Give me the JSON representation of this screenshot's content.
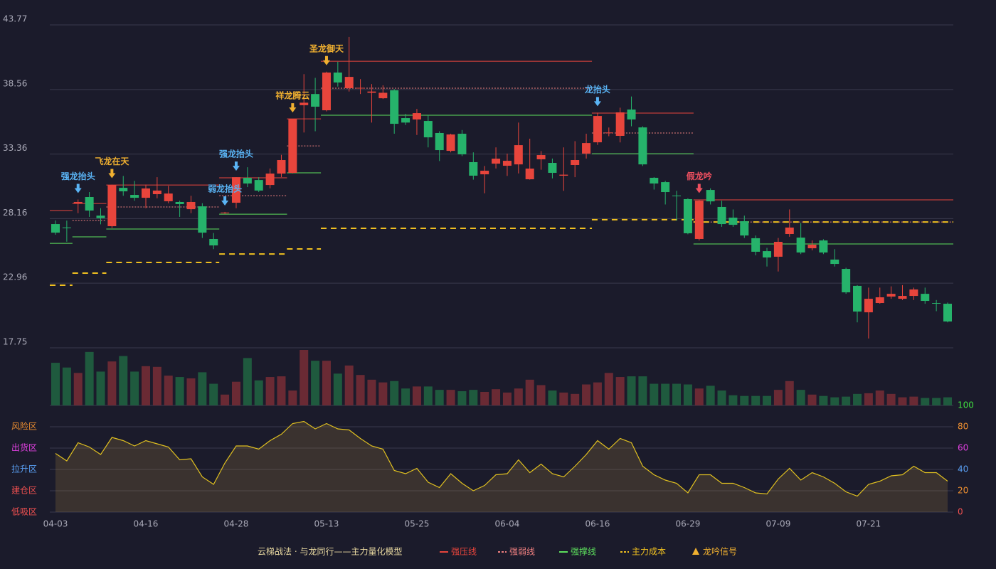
{
  "chart_data": {
    "type": "candlestick",
    "categories": [
      "04-03",
      null,
      null,
      null,
      null,
      null,
      null,
      null,
      "04-16",
      null,
      null,
      null,
      null,
      null,
      null,
      null,
      "04-28",
      null,
      null,
      null,
      null,
      null,
      null,
      null,
      "05-13",
      null,
      null,
      null,
      null,
      null,
      null,
      null,
      "05-25",
      null,
      null,
      null,
      null,
      null,
      null,
      null,
      "06-04",
      null,
      null,
      null,
      null,
      null,
      null,
      null,
      "06-16",
      null,
      null,
      null,
      null,
      null,
      null,
      null,
      "06-29",
      null,
      null,
      null,
      null,
      null,
      null,
      null,
      "07-09",
      null,
      null,
      null,
      null,
      null,
      null,
      null,
      "07-21",
      null,
      null,
      null,
      null,
      null,
      null,
      null
    ],
    "open": [
      27.72,
      27.45,
      29.4,
      29.9,
      28.4,
      27.55,
      30.64,
      30.07,
      29.84,
      30.13,
      29.56,
      29.5,
      28.92,
      29.15,
      26.52,
      28.6,
      29.44,
      31.45,
      31.27,
      30.87,
      31.79,
      31.85,
      37.3,
      38.2,
      36.89,
      39.93,
      38.67,
      38.65,
      38.3,
      37.86,
      38.5,
      36.26,
      36.15,
      36.03,
      35.06,
      33.62,
      35.0,
      32.71,
      31.73,
      32.59,
      32.42,
      32.53,
      31.33,
      32.94,
      32.65,
      31.62,
      32.48,
      33.4,
      34.31,
      35.05,
      34.83,
      36.95,
      35.51,
      31.45,
      31.1,
      30.02,
      29.73,
      26.52,
      30.47,
      29.1,
      28.24,
      27.95,
      26.58,
      25.54,
      25.09,
      26.92,
      26.63,
      25.77,
      26.4,
      24.86,
      24.11,
      22.74,
      20.61,
      21.36,
      21.88,
      21.7,
      21.93,
      22.1,
      21.36,
      21.3
    ],
    "high": [
      28.01,
      28.0,
      29.7,
      30.3,
      29.0,
      30.9,
      31.6,
      31.2,
      30.9,
      31.5,
      30.8,
      29.6,
      30.0,
      29.4,
      27.0,
      28.7,
      31.5,
      32.3,
      31.5,
      32.2,
      33.3,
      36.2,
      39.8,
      39.5,
      40.0,
      40.8,
      42.8,
      39.4,
      39.0,
      38.9,
      38.6,
      36.6,
      37.0,
      36.5,
      35.2,
      35.0,
      35.3,
      33.5,
      32.4,
      33.9,
      33.4,
      35.9,
      34.6,
      33.6,
      33.0,
      33.9,
      34.4,
      35.0,
      36.7,
      35.5,
      37.1,
      38.0,
      35.6,
      31.5,
      31.2,
      30.4,
      29.8,
      29.7,
      30.6,
      29.6,
      28.9,
      28.4,
      26.8,
      25.8,
      26.6,
      28.9,
      27.8,
      26.4,
      26.5,
      25.7,
      24.2,
      22.8,
      22.6,
      22.6,
      22.7,
      22.8,
      22.6,
      22.6,
      21.6,
      21.4
    ],
    "low": [
      26.86,
      26.3,
      28.6,
      28.3,
      27.7,
      27.4,
      30.0,
      29.6,
      29.0,
      29.8,
      29.4,
      28.3,
      28.6,
      26.6,
      25.7,
      28.55,
      29.0,
      30.7,
      30.3,
      30.6,
      31.5,
      31.8,
      35.1,
      35.2,
      36.8,
      38.8,
      38.4,
      38.2,
      35.9,
      37.8,
      35.0,
      35.7,
      34.9,
      33.9,
      32.8,
      33.5,
      33.2,
      31.3,
      30.2,
      32.2,
      31.6,
      31.8,
      31.3,
      32.1,
      31.4,
      30.4,
      31.5,
      33.0,
      34.1,
      34.8,
      34.3,
      35.6,
      32.4,
      30.5,
      29.3,
      28.0,
      26.9,
      26.4,
      29.3,
      27.5,
      27.5,
      26.6,
      25.2,
      24.3,
      23.9,
      26.7,
      25.3,
      25.6,
      25.3,
      24.3,
      22.1,
      19.8,
      18.5,
      21.3,
      21.7,
      21.6,
      21.6,
      21.3,
      20.7,
      19.8
    ],
    "close": [
      27.03,
      27.4,
      29.5,
      28.81,
      28.2,
      30.87,
      30.36,
      29.84,
      30.59,
      30.42,
      30.18,
      29.33,
      29.5,
      27.03,
      26.0,
      28.65,
      31.5,
      30.99,
      30.42,
      31.79,
      32.88,
      36.2,
      37.5,
      37.18,
      39.93,
      39.13,
      39.58,
      38.7,
      38.4,
      38.3,
      35.8,
      35.9,
      36.66,
      34.71,
      33.68,
      34.94,
      33.34,
      31.62,
      32.02,
      32.99,
      32.82,
      34.08,
      32.19,
      33.28,
      31.85,
      31.7,
      32.88,
      34.25,
      36.43,
      35.1,
      36.72,
      36.15,
      32.53,
      30.99,
      30.3,
      29.98,
      26.98,
      29.61,
      29.55,
      27.72,
      27.66,
      26.8,
      25.49,
      25.03,
      26.29,
      27.44,
      25.43,
      26.06,
      25.43,
      24.51,
      22.22,
      20.67,
      21.7,
      21.82,
      22.1,
      21.93,
      22.45,
      21.53,
      21.35,
      19.87
    ],
    "volume": [
      63,
      56,
      48,
      79,
      50,
      65,
      73,
      50,
      58,
      57,
      44,
      42,
      40,
      49,
      32,
      16,
      35,
      70,
      37,
      42,
      43,
      22,
      82,
      66,
      66,
      47,
      59,
      45,
      38,
      34,
      36,
      25,
      28,
      28,
      23,
      23,
      21,
      23,
      20,
      24,
      19,
      25,
      38,
      30,
      22,
      19,
      17,
      31,
      34,
      48,
      42,
      43,
      43,
      32,
      32,
      32,
      31,
      25,
      29,
      22,
      15,
      14,
      14,
      14,
      23,
      36,
      23,
      16,
      14,
      12,
      13,
      17,
      18,
      22,
      17,
      12,
      13,
      11,
      11,
      12
    ],
    "up_color": "#e8453c",
    "down_color": "#26b36b",
    "ylim": [
      17.75,
      43.77
    ],
    "yticks": [
      17.75,
      22.96,
      28.16,
      33.36,
      38.56,
      43.77
    ],
    "grid": true,
    "signals": [
      {
        "index": 2,
        "label": "强龙抬头",
        "color": "#5ab4f5"
      },
      {
        "index": 5,
        "label": "飞龙在天",
        "color": "#f0b030"
      },
      {
        "index": 15,
        "label": "弱龙抬头",
        "color": "#5ab4f5"
      },
      {
        "index": 16,
        "label": "强龙抬头",
        "color": "#5ab4f5"
      },
      {
        "index": 21,
        "label": "祥龙腾云",
        "color": "#f0b030"
      },
      {
        "index": 24,
        "label": "圣龙御天",
        "color": "#f0b030"
      },
      {
        "index": 48,
        "label": "龙抬头",
        "color": "#5ab4f5"
      },
      {
        "index": 57,
        "label": "假龙吟",
        "color": "#f05060"
      }
    ],
    "levels": [
      {
        "from": 0,
        "to": 1,
        "resistance": 28.81,
        "mid": null,
        "support": 26.17,
        "cost": 22.79
      },
      {
        "from": 2,
        "to": 4,
        "resistance": 29.38,
        "mid": 28.01,
        "support": 26.69,
        "cost": 23.77
      },
      {
        "from": 5,
        "to": 14,
        "resistance": 30.87,
        "mid": 29.1,
        "support": 27.32,
        "cost": 24.63
      },
      {
        "from": 15,
        "to": 20,
        "resistance": 31.45,
        "mid": 30.01,
        "support": 28.52,
        "cost": 25.31
      },
      {
        "from": 21,
        "to": 23,
        "resistance": 36.2,
        "mid": 34.02,
        "support": 31.85,
        "cost": 25.72
      },
      {
        "from": 24,
        "to": 47,
        "resistance": 40.84,
        "mid": 38.67,
        "support": 36.49,
        "cost": 27.38
      },
      {
        "from": 48,
        "to": 56,
        "resistance": 36.66,
        "mid": 35.06,
        "support": 33.39,
        "cost": 28.07
      },
      {
        "from": 57,
        "to": 79,
        "resistance": 29.67,
        "mid": 27.89,
        "support": 26.12,
        "cost": 27.89
      }
    ],
    "level_colors": {
      "resistance": "#e8453c",
      "mid": "#f08080",
      "support": "#5de05d",
      "cost": "#f0c020"
    },
    "indicator": {
      "values": [
        55,
        48,
        65,
        61,
        54,
        70,
        67,
        62,
        67,
        64,
        61,
        49,
        50,
        33,
        26,
        46,
        62,
        62,
        59,
        67,
        73,
        83,
        85,
        78,
        83,
        78,
        77,
        69,
        62,
        59,
        39,
        36,
        41,
        28,
        23,
        36,
        27,
        20,
        25,
        35,
        36,
        49,
        37,
        45,
        36,
        33,
        43,
        54,
        67,
        59,
        69,
        65,
        43,
        35,
        30,
        27,
        18,
        35,
        35,
        27,
        27,
        23,
        18,
        17,
        31,
        41,
        30,
        37,
        33,
        27,
        19,
        15,
        26,
        29,
        34,
        35,
        43,
        37,
        37,
        29
      ],
      "color": "#e0c020",
      "ylim": [
        0,
        100
      ],
      "yticks": [
        0,
        20,
        40,
        60,
        80,
        100
      ],
      "ytick_colors": [
        "#f05050",
        "#f09030",
        "#5aa0f5",
        "#e040e0",
        "#f09030",
        "#40e040"
      ],
      "zone_ticks": [
        {
          "value": 80,
          "label": "风险区"
        },
        {
          "value": 60,
          "label": "出货区"
        },
        {
          "value": 40,
          "label": "拉升区"
        },
        {
          "value": 20,
          "label": "建仓区"
        },
        {
          "value": 0,
          "label": "低吸区"
        }
      ],
      "zone_colors": [
        "#f09030",
        "#e040e0",
        "#5aa0f5",
        "#f05050",
        "#f05050"
      ]
    },
    "legend": {
      "title": "云梯战法 · 与龙同行——主力量化模型",
      "items": [
        {
          "name": "强压线",
          "color": "#e8453c",
          "style": "solid"
        },
        {
          "name": "强弱线",
          "color": "#f08080",
          "style": "dashed"
        },
        {
          "name": "强撑线",
          "color": "#5de05d",
          "style": "solid"
        },
        {
          "name": "主力成本",
          "color": "#f0c020",
          "style": "dashed"
        },
        {
          "name": "龙吟信号",
          "color": "#f0b030",
          "style": "triangle"
        }
      ]
    }
  }
}
